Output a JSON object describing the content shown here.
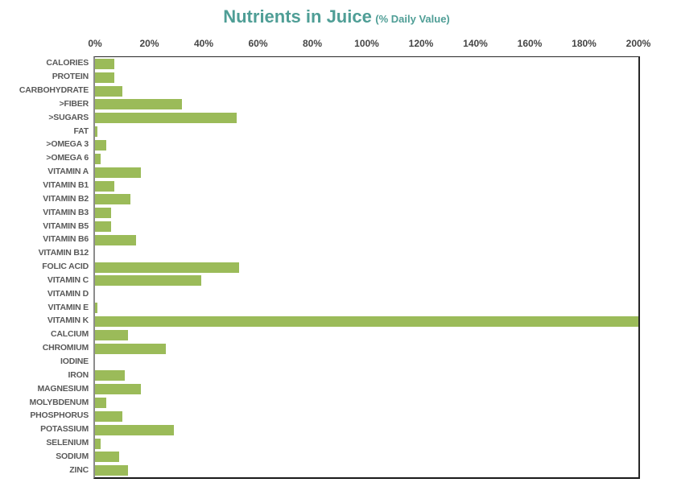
{
  "title": {
    "main": "Nutrients in Juice",
    "subtitle": "(% Daily Value)"
  },
  "colors": {
    "bar": "#9bbb59",
    "title": "#4f9e96",
    "tick_label": "#454545",
    "category_label": "#595959",
    "plot_border": "#262626",
    "left_axis_line": "#8c8c8c"
  },
  "chart_data": {
    "type": "bar",
    "orientation": "horizontal",
    "title": "Nutrients in Juice (% Daily Value)",
    "xlabel": "",
    "ylabel": "",
    "xlim": [
      0,
      200
    ],
    "x_tick_labels": [
      "0%",
      "20%",
      "40%",
      "60%",
      "80%",
      "100%",
      "120%",
      "140%",
      "160%",
      "180%",
      "200%"
    ],
    "grid": false,
    "legend": false,
    "categories": [
      "CALORIES",
      "PROTEIN",
      "CARBOHYDRATE",
      ">FIBER",
      ">SUGARS",
      "FAT",
      ">OMEGA 3",
      ">OMEGA 6",
      "VITAMIN A",
      "VITAMIN B1",
      "VITAMIN B2",
      "VITAMIN B3",
      "VITAMIN B5",
      "VITAMIN B6",
      "VITAMIN B12",
      "FOLIC ACID",
      "VITAMIN C",
      "VITAMIN D",
      "VITAMIN E",
      "VITAMIN K",
      "CALCIUM",
      "CHROMIUM",
      "IODINE",
      "IRON",
      "MAGNESIUM",
      "MOLYBDENUM",
      "PHOSPHORUS",
      "POTASSIUM",
      "SELENIUM",
      "SODIUM",
      "ZINC"
    ],
    "values": [
      7,
      7,
      10,
      32,
      52,
      1,
      4,
      2,
      17,
      7,
      13,
      6,
      6,
      15,
      0,
      53,
      39,
      0,
      1,
      200,
      12,
      26,
      0,
      11,
      17,
      4,
      10,
      29,
      2,
      9,
      12
    ]
  }
}
